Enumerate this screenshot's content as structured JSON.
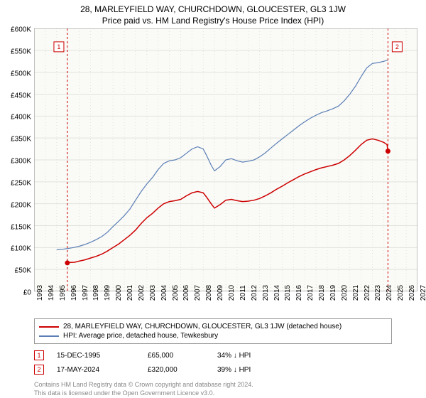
{
  "title": "28, MARLEYFIELD WAY, CHURCHDOWN, GLOUCESTER, GL3 1JW",
  "subtitle": "Price paid vs. HM Land Registry's House Price Index (HPI)",
  "chart": {
    "type": "line",
    "background_color": "#ffffff",
    "plot_bg_color": "#fafaf7",
    "grid_color": "#e2e2dc",
    "axis_color": "#888888",
    "ylim": [
      0,
      600000
    ],
    "ytick_step": 50000,
    "y_labels": [
      "£0",
      "£50K",
      "£100K",
      "£150K",
      "£200K",
      "£250K",
      "£300K",
      "£350K",
      "£400K",
      "£450K",
      "£500K",
      "£550K",
      "£600K"
    ],
    "x_years": [
      1993,
      1994,
      1995,
      1996,
      1997,
      1998,
      1999,
      2000,
      2001,
      2002,
      2003,
      2004,
      2005,
      2006,
      2007,
      2008,
      2009,
      2010,
      2011,
      2012,
      2013,
      2014,
      2015,
      2016,
      2017,
      2018,
      2019,
      2020,
      2021,
      2022,
      2023,
      2024,
      2025,
      2026,
      2027
    ],
    "xlim": [
      1993,
      2027
    ],
    "series": [
      {
        "name": "28, MARLEYFIELD WAY, CHURCHDOWN, GLOUCESTER, GL3 1JW (detached house)",
        "color": "#cc0000",
        "line_width": 1.5,
        "data": [
          [
            1995.95,
            65000
          ],
          [
            1996.2,
            66000
          ],
          [
            1996.6,
            66500
          ],
          [
            1997.0,
            69000
          ],
          [
            1997.5,
            72000
          ],
          [
            1998.0,
            76000
          ],
          [
            1998.5,
            80000
          ],
          [
            1999.0,
            85000
          ],
          [
            1999.5,
            92000
          ],
          [
            2000.0,
            100000
          ],
          [
            2000.5,
            108000
          ],
          [
            2001.0,
            118000
          ],
          [
            2001.5,
            128000
          ],
          [
            2002.0,
            140000
          ],
          [
            2002.5,
            155000
          ],
          [
            2003.0,
            168000
          ],
          [
            2003.5,
            178000
          ],
          [
            2004.0,
            190000
          ],
          [
            2004.5,
            200000
          ],
          [
            2005.0,
            205000
          ],
          [
            2005.5,
            207000
          ],
          [
            2006.0,
            210000
          ],
          [
            2006.5,
            218000
          ],
          [
            2007.0,
            225000
          ],
          [
            2007.5,
            228000
          ],
          [
            2008.0,
            225000
          ],
          [
            2008.3,
            215000
          ],
          [
            2008.7,
            200000
          ],
          [
            2009.0,
            190000
          ],
          [
            2009.5,
            198000
          ],
          [
            2010.0,
            208000
          ],
          [
            2010.5,
            210000
          ],
          [
            2011.0,
            207000
          ],
          [
            2011.5,
            205000
          ],
          [
            2012.0,
            206000
          ],
          [
            2012.5,
            208000
          ],
          [
            2013.0,
            212000
          ],
          [
            2013.5,
            218000
          ],
          [
            2014.0,
            225000
          ],
          [
            2014.5,
            233000
          ],
          [
            2015.0,
            240000
          ],
          [
            2015.5,
            248000
          ],
          [
            2016.0,
            255000
          ],
          [
            2016.5,
            262000
          ],
          [
            2017.0,
            268000
          ],
          [
            2017.5,
            273000
          ],
          [
            2018.0,
            278000
          ],
          [
            2018.5,
            282000
          ],
          [
            2019.0,
            285000
          ],
          [
            2019.5,
            288000
          ],
          [
            2020.0,
            292000
          ],
          [
            2020.5,
            300000
          ],
          [
            2021.0,
            310000
          ],
          [
            2021.5,
            322000
          ],
          [
            2022.0,
            335000
          ],
          [
            2022.5,
            345000
          ],
          [
            2023.0,
            348000
          ],
          [
            2023.5,
            345000
          ],
          [
            2024.0,
            340000
          ],
          [
            2024.3,
            335000
          ],
          [
            2024.38,
            320000
          ]
        ]
      },
      {
        "name": "HPI: Average price, detached house, Tewkesbury",
        "color": "#5b7fb5",
        "line_width": 1.2,
        "data": [
          [
            1995.0,
            95000
          ],
          [
            1995.5,
            96000
          ],
          [
            1996.0,
            98000
          ],
          [
            1996.5,
            100000
          ],
          [
            1997.0,
            103000
          ],
          [
            1997.5,
            107000
          ],
          [
            1998.0,
            112000
          ],
          [
            1998.5,
            118000
          ],
          [
            1999.0,
            125000
          ],
          [
            1999.5,
            135000
          ],
          [
            2000.0,
            148000
          ],
          [
            2000.5,
            160000
          ],
          [
            2001.0,
            173000
          ],
          [
            2001.5,
            188000
          ],
          [
            2002.0,
            208000
          ],
          [
            2002.5,
            228000
          ],
          [
            2003.0,
            245000
          ],
          [
            2003.5,
            260000
          ],
          [
            2004.0,
            278000
          ],
          [
            2004.5,
            292000
          ],
          [
            2005.0,
            298000
          ],
          [
            2005.5,
            300000
          ],
          [
            2006.0,
            305000
          ],
          [
            2006.5,
            315000
          ],
          [
            2007.0,
            325000
          ],
          [
            2007.5,
            330000
          ],
          [
            2008.0,
            325000
          ],
          [
            2008.3,
            310000
          ],
          [
            2008.7,
            288000
          ],
          [
            2009.0,
            275000
          ],
          [
            2009.5,
            285000
          ],
          [
            2010.0,
            300000
          ],
          [
            2010.5,
            303000
          ],
          [
            2011.0,
            298000
          ],
          [
            2011.5,
            295000
          ],
          [
            2012.0,
            297000
          ],
          [
            2012.5,
            300000
          ],
          [
            2013.0,
            307000
          ],
          [
            2013.5,
            316000
          ],
          [
            2014.0,
            327000
          ],
          [
            2014.5,
            338000
          ],
          [
            2015.0,
            348000
          ],
          [
            2015.5,
            358000
          ],
          [
            2016.0,
            368000
          ],
          [
            2016.5,
            378000
          ],
          [
            2017.0,
            387000
          ],
          [
            2017.5,
            395000
          ],
          [
            2018.0,
            402000
          ],
          [
            2018.5,
            408000
          ],
          [
            2019.0,
            412000
          ],
          [
            2019.5,
            417000
          ],
          [
            2020.0,
            423000
          ],
          [
            2020.5,
            435000
          ],
          [
            2021.0,
            450000
          ],
          [
            2021.5,
            468000
          ],
          [
            2022.0,
            490000
          ],
          [
            2022.5,
            510000
          ],
          [
            2023.0,
            520000
          ],
          [
            2023.5,
            522000
          ],
          [
            2024.0,
            525000
          ],
          [
            2024.38,
            528000
          ]
        ]
      }
    ],
    "markers": [
      {
        "n": "1",
        "x": 1995.95,
        "y": 65000,
        "color": "#cc0000",
        "box_x": 1995.2,
        "box_y": 558000
      },
      {
        "n": "2",
        "x": 2024.38,
        "y": 320000,
        "color": "#cc0000",
        "box_x": 2025.2,
        "box_y": 558000
      }
    ]
  },
  "legend": {
    "border_color": "#999999",
    "items": [
      {
        "color": "#cc0000",
        "label": "28, MARLEYFIELD WAY, CHURCHDOWN, GLOUCESTER, GL3 1JW (detached house)"
      },
      {
        "color": "#5b7fb5",
        "label": "HPI: Average price, detached house, Tewkesbury"
      }
    ]
  },
  "points": [
    {
      "n": "1",
      "color": "#cc0000",
      "date": "15-DEC-1995",
      "price": "£65,000",
      "diff": "34% ↓ HPI"
    },
    {
      "n": "2",
      "color": "#cc0000",
      "date": "17-MAY-2024",
      "price": "£320,000",
      "diff": "39% ↓ HPI"
    }
  ],
  "footer_line1": "Contains HM Land Registry data © Crown copyright and database right 2024.",
  "footer_line2": "This data is licensed under the Open Government Licence v3.0."
}
